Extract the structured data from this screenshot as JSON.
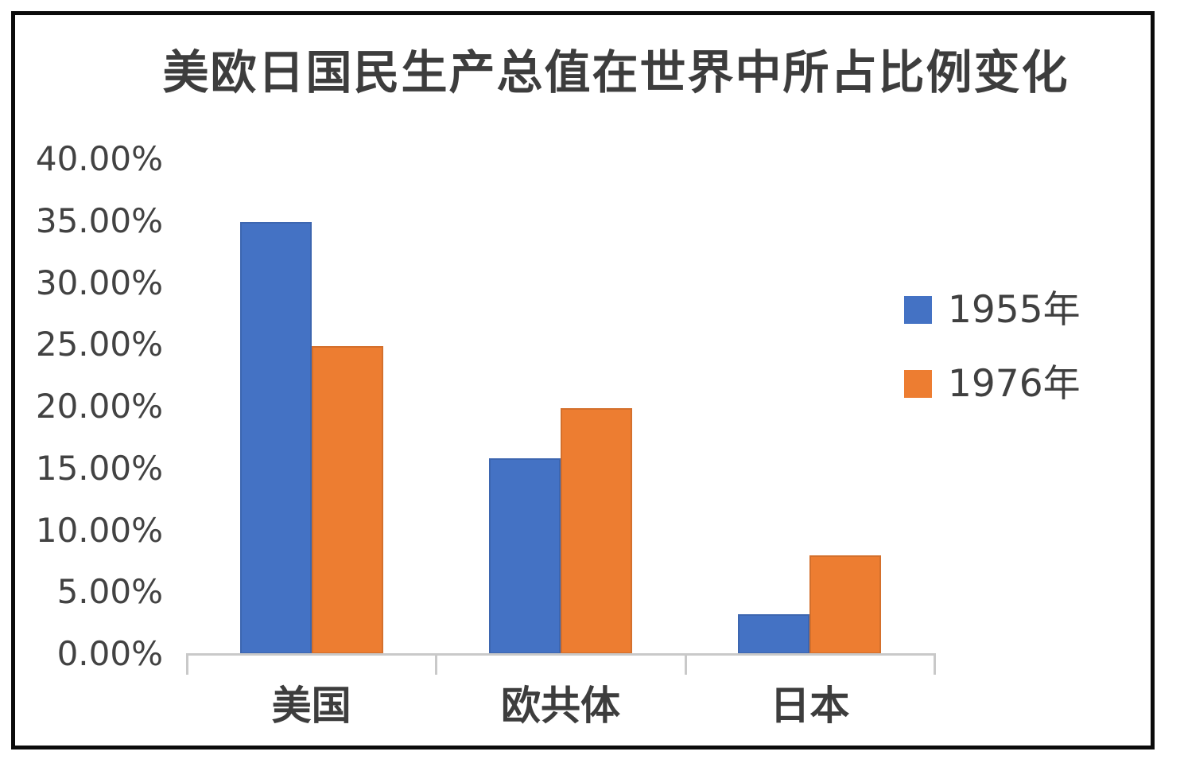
{
  "chart_data": {
    "type": "bar",
    "title": "美欧日国民生产总值在世界中所占比例变化",
    "categories": [
      "美国",
      "欧共体",
      "日本"
    ],
    "series": [
      {
        "name": "1955年",
        "color": "#4472C4",
        "values": [
          34.9,
          15.8,
          3.2
        ]
      },
      {
        "name": "1976年",
        "color": "#ED7D31",
        "values": [
          24.9,
          19.9,
          8.0
        ]
      }
    ],
    "ylim": [
      0,
      40
    ],
    "yticks": [
      {
        "value": 40,
        "label": "40.00%"
      },
      {
        "value": 35,
        "label": "35.00%"
      },
      {
        "value": 30,
        "label": "30.00%"
      },
      {
        "value": 25,
        "label": "25.00%"
      },
      {
        "value": 20,
        "label": "20.00%"
      },
      {
        "value": 15,
        "label": "15.00%"
      },
      {
        "value": 10,
        "label": "10.00%"
      },
      {
        "value": 5,
        "label": "5.00%"
      },
      {
        "value": 0,
        "label": "0.00%"
      }
    ],
    "xlabel": "",
    "ylabel": "",
    "grid": false,
    "legend_position": "right",
    "colors": {
      "series_1955": "#4472C4",
      "series_1976": "#ED7D31",
      "text": "#404040",
      "axis_line": "#C9C9C9",
      "background": "#FFFFFF",
      "frame_border": "#0B0B0B"
    }
  }
}
